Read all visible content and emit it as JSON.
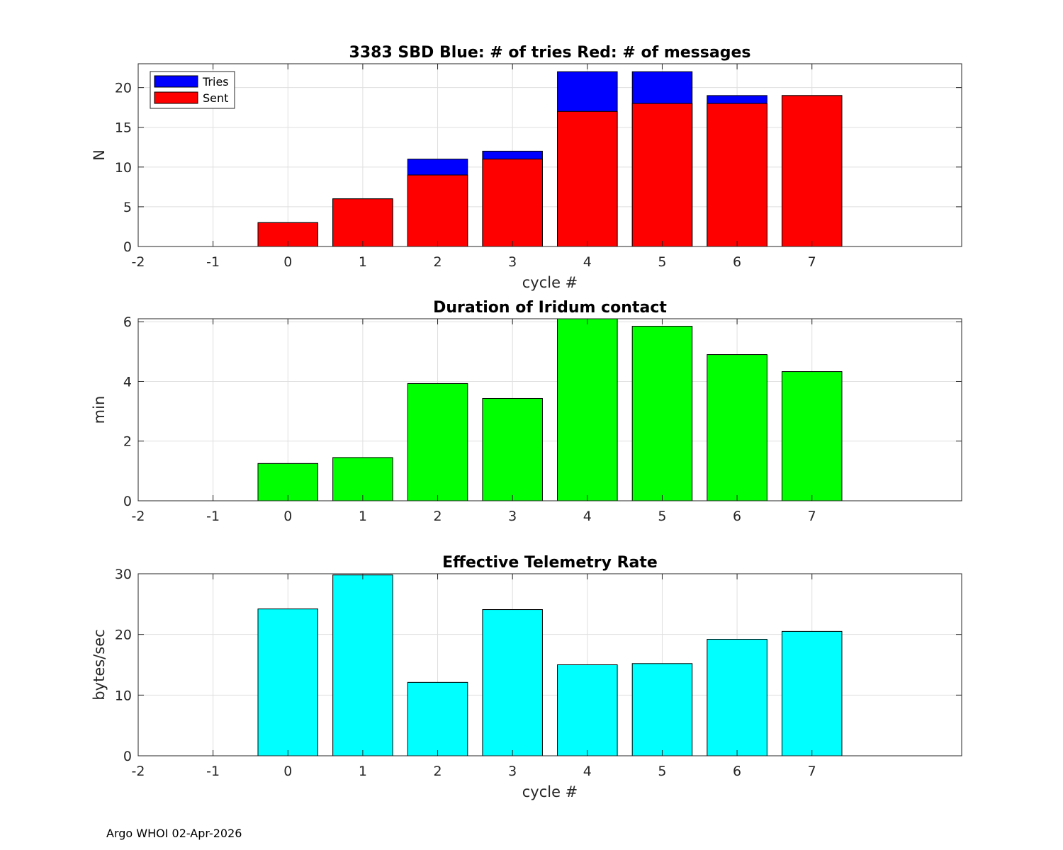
{
  "footer": "Argo WHOI 02-Apr-2026",
  "chart_data": [
    {
      "type": "bar",
      "title": "3383 SBD  Blue: # of tries   Red: # of messages",
      "xlabel": "cycle #",
      "ylabel": "N",
      "xlim": [
        -2,
        9
      ],
      "ylim": [
        0,
        23
      ],
      "xticks": [
        -2,
        -1,
        0,
        1,
        2,
        3,
        4,
        5,
        6,
        7
      ],
      "yticks": [
        0,
        5,
        10,
        15,
        20
      ],
      "x": [
        0,
        1,
        2,
        3,
        4,
        5,
        6,
        7
      ],
      "grid": true,
      "legend": {
        "position": "top-left",
        "entries": [
          "Tries",
          "Sent"
        ]
      },
      "series": [
        {
          "name": "Tries",
          "color": "#0000ff",
          "values": [
            3,
            6,
            11,
            12,
            22,
            22,
            19,
            19
          ]
        },
        {
          "name": "Sent",
          "color": "#ff0000",
          "values": [
            3,
            6,
            9,
            11,
            17,
            18,
            18,
            19
          ]
        }
      ]
    },
    {
      "type": "bar",
      "title": "Duration of Iridum contact",
      "xlabel": "",
      "ylabel": "min",
      "xlim": [
        -2,
        9
      ],
      "ylim": [
        0,
        6.1
      ],
      "xticks": [
        -2,
        -1,
        0,
        1,
        2,
        3,
        4,
        5,
        6,
        7
      ],
      "yticks": [
        0,
        2,
        4,
        6
      ],
      "x": [
        0,
        1,
        2,
        3,
        4,
        5,
        6,
        7
      ],
      "grid": true,
      "series": [
        {
          "name": "Duration",
          "color": "#00ff00",
          "values": [
            1.25,
            1.45,
            3.93,
            3.43,
            6.1,
            5.85,
            4.9,
            4.33
          ]
        }
      ]
    },
    {
      "type": "bar",
      "title": "Effective Telemetry Rate",
      "xlabel": "cycle #",
      "ylabel": "bytes/sec",
      "xlim": [
        -2,
        9
      ],
      "ylim": [
        0,
        30
      ],
      "xticks": [
        -2,
        -1,
        0,
        1,
        2,
        3,
        4,
        5,
        6,
        7
      ],
      "yticks": [
        0,
        10,
        20,
        30
      ],
      "x": [
        0,
        1,
        2,
        3,
        4,
        5,
        6,
        7
      ],
      "grid": true,
      "series": [
        {
          "name": "Rate",
          "color": "#00ffff",
          "values": [
            24.2,
            29.8,
            12.1,
            24.1,
            15,
            15.2,
            19.2,
            20.5
          ]
        }
      ]
    }
  ]
}
